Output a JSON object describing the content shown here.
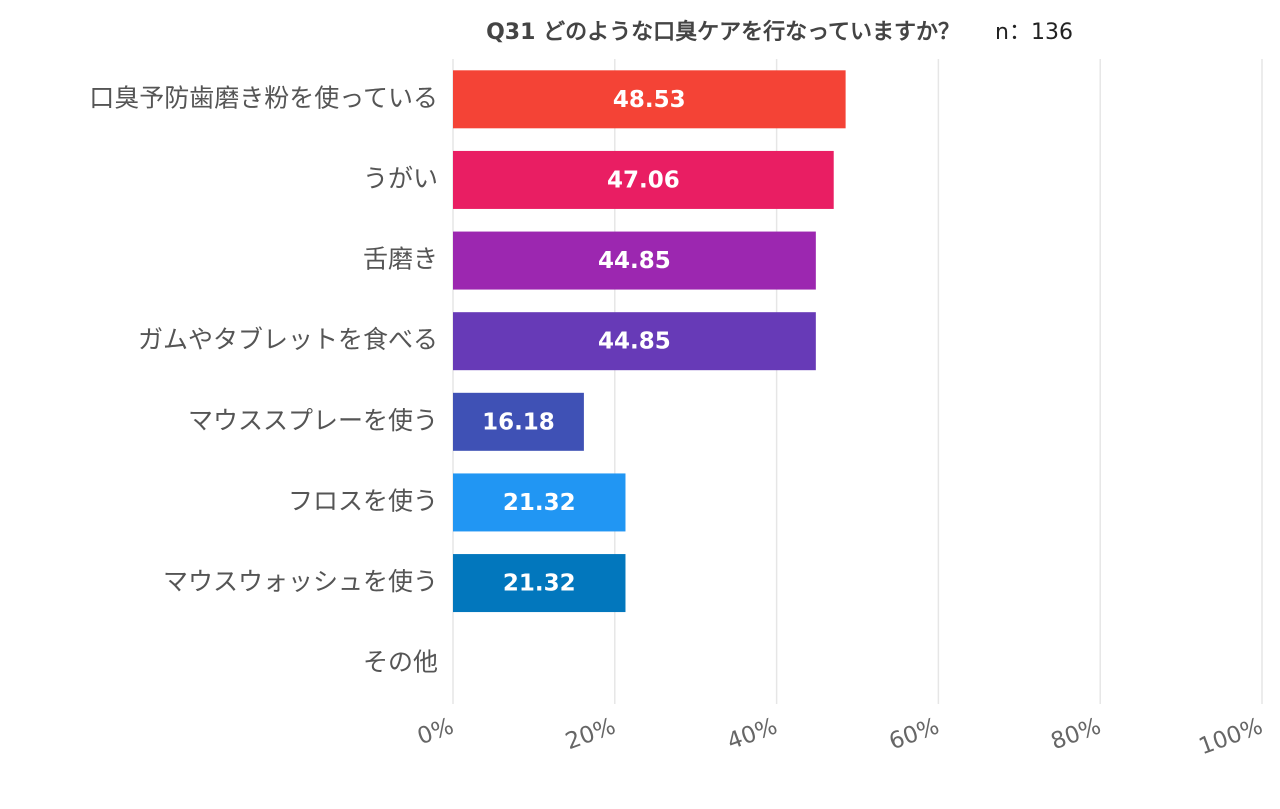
{
  "chart_data": {
    "type": "bar",
    "orientation": "horizontal",
    "title": "Q31 どのような口臭ケアを行なっていますか？",
    "subtitle": "n：136",
    "categories": [
      "口臭予防歯磨き粉を使っている",
      "うがい",
      "舌磨き",
      "ガムやタブレットを食べる",
      "マウススプレーを使う",
      "フロスを使う",
      "マウスウォッシュを使う",
      "その他"
    ],
    "values": [
      48.53,
      47.06,
      44.85,
      44.85,
      16.18,
      21.32,
      21.32,
      0
    ],
    "colors": [
      "#f44336",
      "#e91e63",
      "#9c27b0",
      "#673ab7",
      "#3f51b5",
      "#2196f3",
      "#0277bd",
      "#0277bd"
    ],
    "xlim": [
      0,
      100
    ],
    "xticks": [
      {
        "value": 0,
        "label": "0%"
      },
      {
        "value": 20,
        "label": "20%"
      },
      {
        "value": 40,
        "label": "40%"
      },
      {
        "value": 60,
        "label": "60%"
      },
      {
        "value": 80,
        "label": "80%"
      },
      {
        "value": 100,
        "label": "100%"
      }
    ],
    "grid": true
  }
}
